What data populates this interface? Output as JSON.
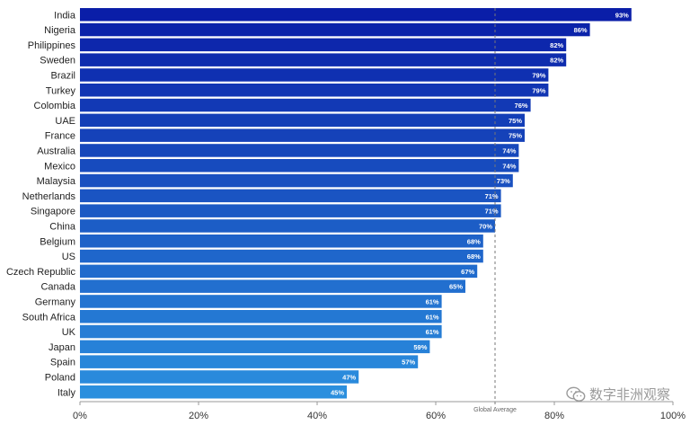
{
  "chart_data": {
    "type": "bar",
    "orientation": "horizontal",
    "categories": [
      "India",
      "Nigeria",
      "Philippines",
      "Sweden",
      "Brazil",
      "Turkey",
      "Colombia",
      "UAE",
      "France",
      "Australia",
      "Mexico",
      "Malaysia",
      "Netherlands",
      "Singapore",
      "China",
      "Belgium",
      "US",
      "Czech Republic",
      "Canada",
      "Germany",
      "South Africa",
      "UK",
      "Japan",
      "Spain",
      "Poland",
      "Italy"
    ],
    "values": [
      93,
      86,
      82,
      82,
      79,
      79,
      76,
      75,
      75,
      74,
      74,
      73,
      71,
      71,
      70,
      68,
      68,
      67,
      65,
      61,
      61,
      61,
      59,
      57,
      47,
      45
    ],
    "value_labels": [
      "93%",
      "86%",
      "82%",
      "82%",
      "79%",
      "79%",
      "76%",
      "75%",
      "75%",
      "74%",
      "74%",
      "73%",
      "71%",
      "71%",
      "70%",
      "68%",
      "68%",
      "67%",
      "65%",
      "61%",
      "61%",
      "61%",
      "59%",
      "57%",
      "47%",
      "45%"
    ],
    "xlim": [
      0,
      100
    ],
    "xticks": [
      0,
      20,
      40,
      60,
      80,
      100
    ],
    "xtick_labels": [
      "0%",
      "20%",
      "40%",
      "60%",
      "80%",
      "100%"
    ],
    "reference_line": {
      "value": 70,
      "label": "Global Average",
      "style": "dashed"
    },
    "title": "",
    "xlabel": "",
    "ylabel": "",
    "grid": false,
    "colors": {
      "top": "#0a1ea8",
      "bottom": "#2b8fde",
      "avg_line": "#777777"
    }
  },
  "watermark": {
    "text": "数字非洲观察",
    "icon": "wechat-icon"
  }
}
